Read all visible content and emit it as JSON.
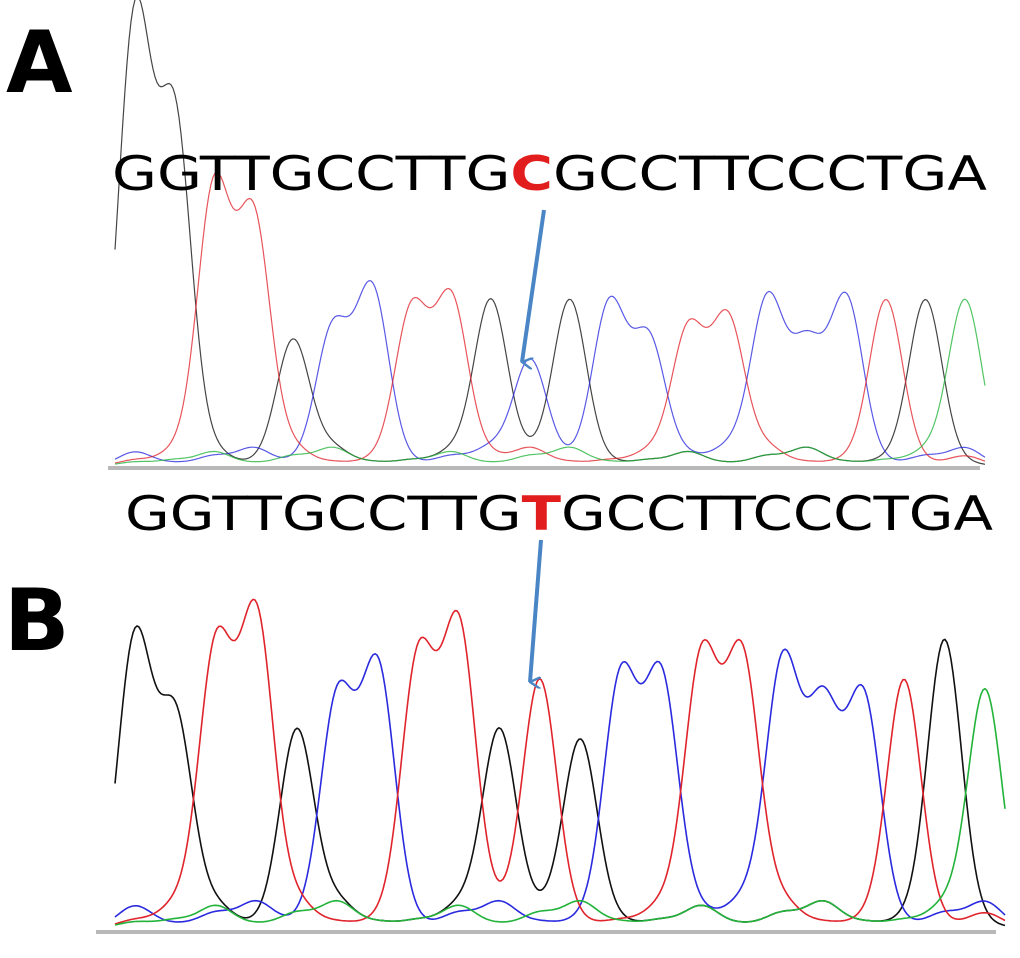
{
  "panels": [
    {
      "label": "A",
      "sequence": "GGTTGCCTTGCGCCTTCCCTGA",
      "sequence_before": "GGTTGCCTTG",
      "mutant_base": "C",
      "sequence_after": "GCCTTCCCTGA"
    },
    {
      "label": "B",
      "sequence": "GGTTGCCTTGTGCCTTCCCTGA",
      "sequence_before": "GGTTGCCTTG",
      "mutant_base": "T",
      "sequence_after": "GCCTTCCCTGA"
    }
  ],
  "colors": {
    "base_G": "#111111",
    "base_C": "#2a2adf",
    "base_T": "#e0242c",
    "base_A": "#23b33a",
    "mutation": "#e21d1d",
    "arrow": "#4a86c5",
    "baseline": "#b8b8b8"
  }
}
